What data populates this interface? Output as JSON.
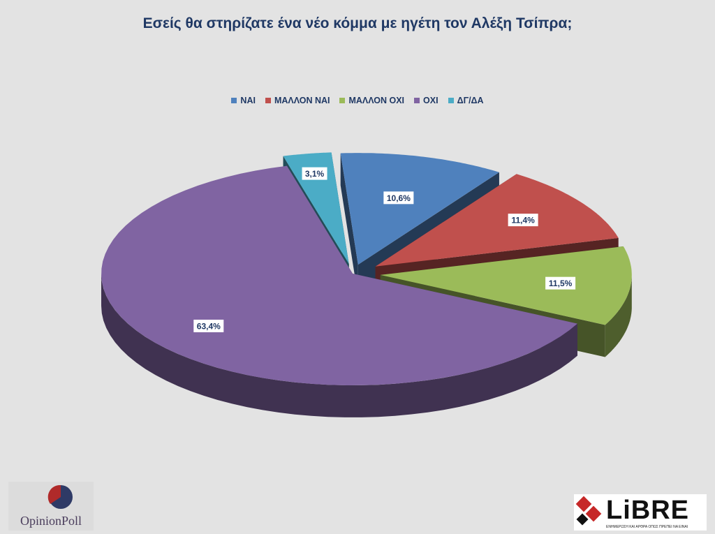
{
  "title": "Εσείς θα στηρίζατε  ένα νέο κόμμα με ηγέτη τον Αλέξη Τσίπρα;",
  "chart_data": {
    "type": "pie",
    "title": "Εσείς θα στηρίζατε  ένα νέο κόμμα με ηγέτη τον Αλέξη Τσίπρα;",
    "legend_position": "top",
    "series": [
      {
        "categories": [
          "ΝΑΙ",
          "ΜΑΛΛΟΝ ΝΑΙ",
          "ΜΑΛΛΟΝ ΟΧΙ",
          "ΟΧΙ",
          "ΔΓ/ΔΑ"
        ],
        "values": [
          10.6,
          11.4,
          11.5,
          63.4,
          3.1
        ],
        "labels": [
          "10,6%",
          "11,4%",
          "11,5%",
          "63,4%",
          "3,1%"
        ],
        "colors": [
          "#4f81bd",
          "#c0504d",
          "#9bbb59",
          "#8064a2",
          "#4bacc6"
        ]
      }
    ],
    "style": "3d-exploded"
  },
  "logos": {
    "left": "OpinionPoll",
    "right": "LiBRE",
    "right_tagline": "ΕΝΗΜΕΡΩΣΗ ΚΑΙ ΑΡΘΡΑ ΟΠΩΣ ΠΡΕΠΕΙ ΝΑ ΕΙΝΑΙ"
  }
}
